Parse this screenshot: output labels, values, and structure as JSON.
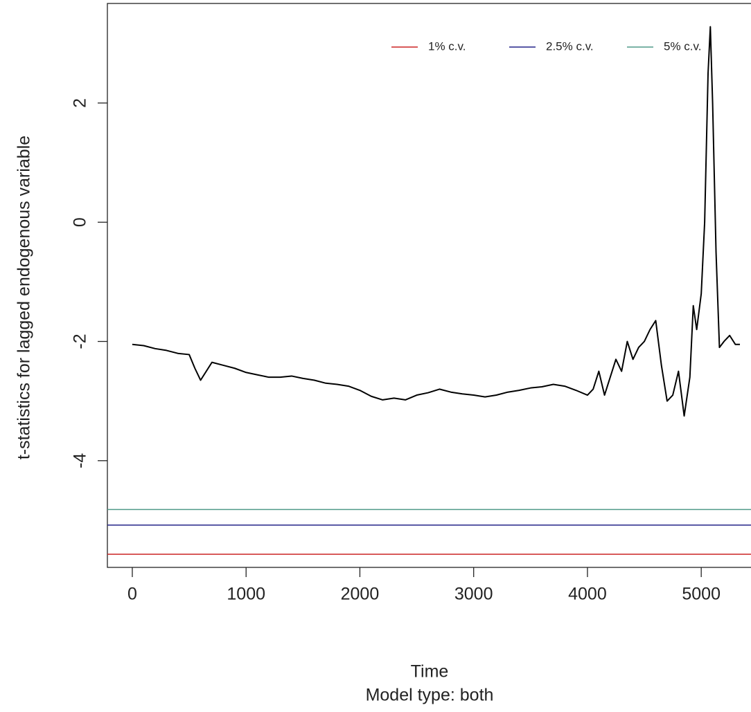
{
  "chart_data": {
    "type": "line",
    "xlabel": "Time",
    "subtitle": "Model type: both",
    "ylabel": "t-statistics for lagged endogenous variable",
    "xlim": [
      -219,
      5553
    ],
    "ylim": [
      -5.79,
      3.67
    ],
    "xticks": [
      0,
      1000,
      2000,
      3000,
      4000,
      5000
    ],
    "yticks": [
      -4,
      -2,
      0,
      2
    ],
    "x": [
      0,
      100,
      200,
      300,
      400,
      500,
      550,
      600,
      650,
      700,
      800,
      900,
      1000,
      1100,
      1200,
      1300,
      1400,
      1500,
      1600,
      1700,
      1800,
      1900,
      2000,
      2100,
      2200,
      2300,
      2400,
      2500,
      2600,
      2700,
      2800,
      2900,
      3000,
      3100,
      3200,
      3300,
      3400,
      3500,
      3600,
      3700,
      3800,
      3900,
      4000,
      4050,
      4100,
      4150,
      4200,
      4250,
      4300,
      4350,
      4400,
      4450,
      4500,
      4550,
      4600,
      4650,
      4700,
      4750,
      4800,
      4850,
      4900,
      4930,
      4960,
      5000,
      5030,
      5060,
      5080,
      5100,
      5130,
      5160,
      5200,
      5250,
      5300,
      5340
    ],
    "series": [
      {
        "color": "#000000",
        "values": [
          -2.05,
          -2.07,
          -2.12,
          -2.15,
          -2.2,
          -2.22,
          -2.45,
          -2.65,
          -2.5,
          -2.35,
          -2.4,
          -2.45,
          -2.52,
          -2.56,
          -2.6,
          -2.6,
          -2.58,
          -2.62,
          -2.65,
          -2.7,
          -2.72,
          -2.75,
          -2.82,
          -2.92,
          -2.98,
          -2.95,
          -2.98,
          -2.9,
          -2.86,
          -2.8,
          -2.85,
          -2.88,
          -2.9,
          -2.93,
          -2.9,
          -2.85,
          -2.82,
          -2.78,
          -2.76,
          -2.72,
          -2.75,
          -2.82,
          -2.9,
          -2.8,
          -2.5,
          -2.9,
          -2.6,
          -2.3,
          -2.5,
          -2.0,
          -2.3,
          -2.1,
          -2.0,
          -1.8,
          -1.65,
          -2.4,
          -3.0,
          -2.9,
          -2.5,
          -3.25,
          -2.6,
          -1.4,
          -1.8,
          -1.2,
          0.0,
          2.5,
          3.28,
          2.0,
          -0.5,
          -2.1,
          -2.0,
          -1.9,
          -2.05,
          -2.05
        ]
      }
    ],
    "hlines": [
      {
        "name": "1% c.v.",
        "color": "#cc2222",
        "value": -5.57
      },
      {
        "name": "2.5% c.v.",
        "color": "#222288",
        "value": -5.08
      },
      {
        "name": "5% c.v.",
        "color": "#4f9a88",
        "value": -4.82
      }
    ],
    "legend": "top-right"
  }
}
